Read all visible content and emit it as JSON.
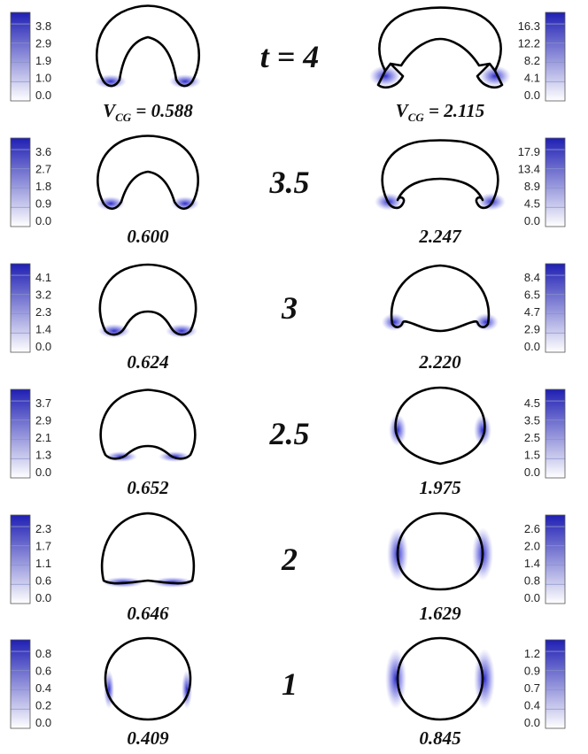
{
  "colors": {
    "colormap_high": "#1f1fb4",
    "colormap_low": "#ffffff",
    "outline": "#000000",
    "text": "#111111"
  },
  "vcg_prefix": "V",
  "vcg_subscript": "CG",
  "rows": [
    {
      "time_label": "t = 4",
      "left": {
        "velocity": "0.588",
        "show_vcg": true,
        "ticks": [
          "0.0",
          "1.0",
          "1.9",
          "2.9",
          "3.8"
        ]
      },
      "right": {
        "velocity": "2.115",
        "show_vcg": true,
        "ticks": [
          "0.0",
          "4.1",
          "8.2",
          "12.2",
          "16.3"
        ]
      }
    },
    {
      "time_label": "3.5",
      "left": {
        "velocity": "0.600",
        "show_vcg": false,
        "ticks": [
          "0.0",
          "0.9",
          "1.8",
          "2.7",
          "3.6"
        ]
      },
      "right": {
        "velocity": "2.247",
        "show_vcg": false,
        "ticks": [
          "0.0",
          "4.5",
          "8.9",
          "13.4",
          "17.9"
        ]
      }
    },
    {
      "time_label": "3",
      "left": {
        "velocity": "0.624",
        "show_vcg": false,
        "ticks": [
          "0.0",
          "1.4",
          "2.3",
          "3.2",
          "4.1"
        ]
      },
      "right": {
        "velocity": "2.220",
        "show_vcg": false,
        "ticks": [
          "0.0",
          "2.9",
          "4.7",
          "6.5",
          "8.4"
        ]
      }
    },
    {
      "time_label": "2.5",
      "left": {
        "velocity": "0.652",
        "show_vcg": false,
        "ticks": [
          "0.0",
          "1.3",
          "2.1",
          "2.9",
          "3.7"
        ]
      },
      "right": {
        "velocity": "1.975",
        "show_vcg": false,
        "ticks": [
          "0.0",
          "1.5",
          "2.5",
          "3.5",
          "4.5"
        ]
      }
    },
    {
      "time_label": "2",
      "left": {
        "velocity": "0.646",
        "show_vcg": false,
        "ticks": [
          "0.0",
          "0.6",
          "1.1",
          "1.7",
          "2.3"
        ]
      },
      "right": {
        "velocity": "1.629",
        "show_vcg": false,
        "ticks": [
          "0.0",
          "0.8",
          "1.4",
          "2.0",
          "2.6"
        ]
      }
    },
    {
      "time_label": "1",
      "left": {
        "velocity": "0.409",
        "show_vcg": false,
        "ticks": [
          "0.0",
          "0.2",
          "0.4",
          "0.6",
          "0.8"
        ]
      },
      "right": {
        "velocity": "0.845",
        "show_vcg": false,
        "ticks": [
          "0.0",
          "0.4",
          "0.7",
          "0.9",
          "1.2"
        ]
      }
    }
  ]
}
